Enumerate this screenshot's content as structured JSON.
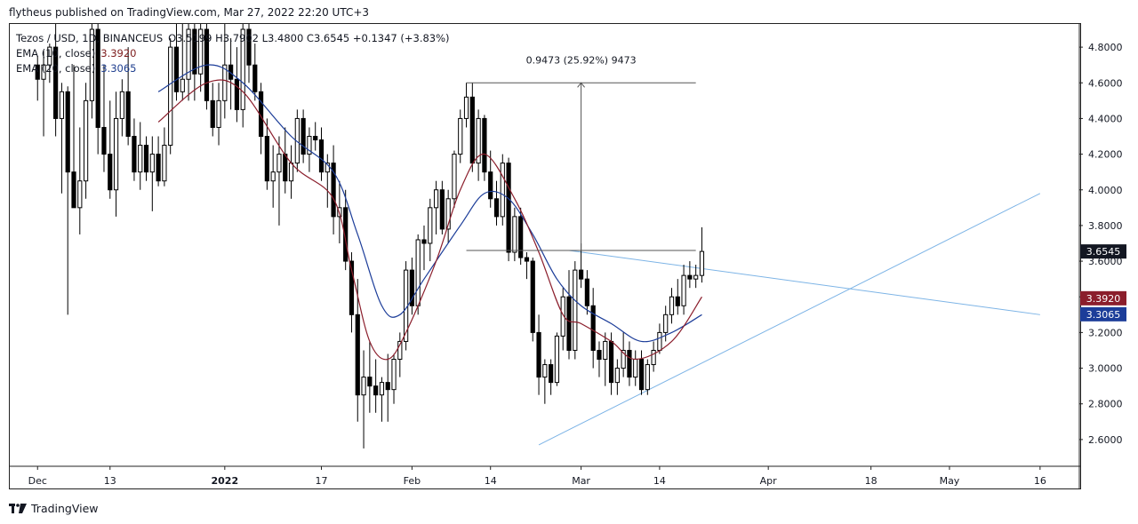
{
  "caption": "flytheus published on TradingView.com, Mar 27, 2022 22:20 UTC+3",
  "brand": "TradingView",
  "legend": {
    "symbol": "Tezos / USD, 1D, BINANCEUS",
    "ohlc": "O3.5199 H3.7902 L3.4800 C3.6545 +0.1347 (+3.83%)",
    "ema10_label": "EMA (10, close)",
    "ema10_value": "3.3920",
    "ema20_label": "EMA (20, close)",
    "ema20_value": "3.3065"
  },
  "measure_label": "0.9473 (25.92%) 9473",
  "price_tags": [
    {
      "value": "3.6545",
      "price": 3.6545,
      "color": "#131722"
    },
    {
      "value": "3.3920",
      "price": 3.392,
      "color": "#8b1e2c"
    },
    {
      "value": "3.3065",
      "price": 3.3065,
      "color": "#1c3d99"
    }
  ],
  "colors": {
    "ema10": "#8b1e2c",
    "ema20": "#1c3d99",
    "trendline": "#7db4e6",
    "up_candle": "#ffffff",
    "down_candle": "#000000",
    "measure": "#555555"
  },
  "chart_data": {
    "type": "candlestick",
    "title": "Tezos / USD, 1D, BINANCEUS",
    "y_ticks": [
      "2.6000",
      "2.8000",
      "3.0000",
      "3.2000",
      "3.4000",
      "3.6000",
      "3.8000",
      "4.0000",
      "4.2000",
      "4.4000",
      "4.6000",
      "4.8000"
    ],
    "x_ticks": [
      {
        "label": "Dec",
        "day": 0,
        "bold": false
      },
      {
        "label": "13",
        "day": 12,
        "bold": false
      },
      {
        "label": "2022",
        "day": 31,
        "bold": true
      },
      {
        "label": "17",
        "day": 47,
        "bold": false
      },
      {
        "label": "Feb",
        "day": 62,
        "bold": false
      },
      {
        "label": "14",
        "day": 75,
        "bold": false
      },
      {
        "label": "Mar",
        "day": 90,
        "bold": false
      },
      {
        "label": "14",
        "day": 103,
        "bold": false
      },
      {
        "label": "Apr",
        "day": 121,
        "bold": false
      },
      {
        "label": "18",
        "day": 138,
        "bold": false
      },
      {
        "label": "May",
        "day": 151,
        "bold": false
      },
      {
        "label": "16",
        "day": 166,
        "bold": false
      }
    ],
    "ylim": [
      2.45,
      4.93
    ],
    "xlim_days": [
      -4.6,
      172.5
    ],
    "first_day": "Dec 1",
    "candles_ohlc": [
      [
        4.7,
        4.75,
        4.5,
        4.62
      ],
      [
        4.62,
        4.78,
        4.3,
        4.7
      ],
      [
        4.7,
        4.82,
        4.6,
        4.8
      ],
      [
        4.8,
        4.93,
        4.3,
        4.4
      ],
      [
        4.4,
        4.6,
        3.98,
        4.55
      ],
      [
        4.55,
        4.58,
        3.3,
        4.1
      ],
      [
        4.1,
        4.7,
        3.9,
        3.9
      ],
      [
        3.9,
        4.35,
        3.75,
        4.05
      ],
      [
        4.05,
        4.6,
        3.95,
        4.5
      ],
      [
        4.5,
        4.93,
        4.4,
        4.9
      ],
      [
        4.9,
        4.93,
        4.2,
        4.35
      ],
      [
        4.35,
        4.7,
        4.1,
        4.2
      ],
      [
        4.2,
        4.5,
        3.95,
        4.0
      ],
      [
        4.0,
        4.55,
        3.85,
        4.4
      ],
      [
        4.4,
        4.62,
        4.3,
        4.55
      ],
      [
        4.55,
        4.8,
        4.25,
        4.3
      ],
      [
        4.3,
        4.4,
        4.05,
        4.1
      ],
      [
        4.1,
        4.38,
        4.0,
        4.25
      ],
      [
        4.25,
        4.3,
        4.05,
        4.1
      ],
      [
        4.1,
        4.3,
        3.88,
        4.2
      ],
      [
        4.2,
        4.3,
        4.02,
        4.05
      ],
      [
        4.05,
        4.35,
        4.02,
        4.25
      ],
      [
        4.25,
        4.85,
        4.2,
        4.8
      ],
      [
        4.8,
        4.93,
        4.5,
        4.55
      ],
      [
        4.55,
        4.93,
        4.5,
        4.62
      ],
      [
        4.62,
        4.93,
        4.5,
        4.9
      ],
      [
        4.9,
        4.93,
        4.5,
        4.65
      ],
      [
        4.65,
        4.93,
        4.55,
        4.9
      ],
      [
        4.9,
        4.93,
        4.45,
        4.5
      ],
      [
        4.5,
        4.6,
        4.3,
        4.35
      ],
      [
        4.35,
        4.6,
        4.25,
        4.5
      ],
      [
        4.5,
        4.93,
        4.4,
        4.7
      ],
      [
        4.7,
        4.85,
        4.45,
        4.62
      ],
      [
        4.62,
        4.8,
        4.38,
        4.45
      ],
      [
        4.45,
        4.93,
        4.35,
        4.9
      ],
      [
        4.9,
        4.93,
        4.6,
        4.7
      ],
      [
        4.7,
        4.82,
        4.5,
        4.55
      ],
      [
        4.55,
        4.6,
        4.2,
        4.3
      ],
      [
        4.3,
        4.4,
        4.0,
        4.05
      ],
      [
        4.05,
        4.25,
        3.9,
        4.1
      ],
      [
        4.1,
        4.3,
        3.8,
        4.2
      ],
      [
        4.2,
        4.35,
        3.98,
        4.05
      ],
      [
        4.05,
        4.25,
        3.95,
        4.15
      ],
      [
        4.15,
        4.45,
        4.1,
        4.4
      ],
      [
        4.4,
        4.45,
        4.15,
        4.2
      ],
      [
        4.2,
        4.35,
        4.1,
        4.3
      ],
      [
        4.3,
        4.38,
        4.22,
        4.28
      ],
      [
        4.28,
        4.35,
        4.05,
        4.1
      ],
      [
        4.1,
        4.2,
        3.9,
        4.15
      ],
      [
        4.15,
        4.25,
        3.75,
        3.85
      ],
      [
        3.85,
        4.05,
        3.7,
        3.9
      ],
      [
        3.9,
        4.0,
        3.55,
        3.6
      ],
      [
        3.6,
        3.65,
        3.2,
        3.3
      ],
      [
        3.3,
        3.5,
        2.7,
        2.85
      ],
      [
        2.85,
        3.1,
        2.55,
        2.95
      ],
      [
        2.95,
        3.15,
        2.75,
        2.9
      ],
      [
        2.9,
        3.05,
        2.75,
        2.85
      ],
      [
        2.85,
        2.95,
        2.7,
        2.92
      ],
      [
        2.92,
        3.08,
        2.7,
        2.88
      ],
      [
        2.88,
        3.08,
        2.8,
        3.05
      ],
      [
        3.05,
        3.2,
        2.95,
        3.15
      ],
      [
        3.15,
        3.6,
        3.1,
        3.55
      ],
      [
        3.55,
        3.62,
        3.3,
        3.35
      ],
      [
        3.35,
        3.75,
        3.3,
        3.72
      ],
      [
        3.72,
        3.8,
        3.55,
        3.7
      ],
      [
        3.7,
        3.95,
        3.6,
        3.9
      ],
      [
        3.9,
        4.05,
        3.75,
        4.0
      ],
      [
        4.0,
        4.05,
        3.75,
        3.78
      ],
      [
        3.78,
        4.0,
        3.7,
        3.95
      ],
      [
        3.95,
        4.22,
        3.9,
        4.2
      ],
      [
        4.2,
        4.45,
        4.15,
        4.4
      ],
      [
        4.4,
        4.6,
        4.35,
        4.52
      ],
      [
        4.52,
        4.6,
        4.1,
        4.15
      ],
      [
        4.15,
        4.45,
        4.05,
        4.4
      ],
      [
        4.4,
        4.42,
        4.05,
        4.1
      ],
      [
        4.1,
        4.22,
        3.9,
        3.95
      ],
      [
        3.95,
        4.05,
        3.8,
        3.85
      ],
      [
        3.85,
        4.2,
        3.8,
        4.15
      ],
      [
        4.15,
        4.18,
        3.6,
        3.65
      ],
      [
        3.65,
        3.9,
        3.6,
        3.85
      ],
      [
        3.85,
        3.9,
        3.58,
        3.62
      ],
      [
        3.62,
        3.65,
        3.5,
        3.6
      ],
      [
        3.6,
        3.62,
        3.15,
        3.2
      ],
      [
        3.2,
        3.3,
        2.85,
        2.95
      ],
      [
        2.95,
        3.05,
        2.8,
        3.02
      ],
      [
        3.02,
        3.05,
        2.85,
        2.92
      ],
      [
        2.92,
        3.2,
        2.9,
        3.18
      ],
      [
        3.18,
        3.45,
        3.1,
        3.4
      ],
      [
        3.4,
        3.55,
        3.05,
        3.1
      ],
      [
        3.1,
        3.6,
        3.05,
        3.55
      ],
      [
        3.55,
        3.7,
        3.45,
        3.5
      ],
      [
        3.5,
        3.55,
        3.3,
        3.35
      ],
      [
        3.35,
        3.45,
        3.0,
        3.1
      ],
      [
        3.1,
        3.15,
        2.95,
        3.05
      ],
      [
        3.05,
        3.2,
        2.9,
        3.15
      ],
      [
        3.15,
        3.2,
        2.85,
        2.92
      ],
      [
        2.92,
        3.05,
        2.85,
        3.0
      ],
      [
        3.0,
        3.2,
        2.95,
        3.1
      ],
      [
        3.1,
        3.15,
        2.9,
        2.95
      ],
      [
        2.95,
        3.1,
        2.9,
        3.05
      ],
      [
        3.05,
        3.1,
        2.85,
        2.88
      ],
      [
        2.88,
        3.05,
        2.85,
        3.02
      ],
      [
        3.02,
        3.15,
        2.98,
        3.1
      ],
      [
        3.1,
        3.25,
        3.08,
        3.2
      ],
      [
        3.2,
        3.35,
        3.15,
        3.3
      ],
      [
        3.3,
        3.45,
        3.25,
        3.4
      ],
      [
        3.4,
        3.5,
        3.3,
        3.35
      ],
      [
        3.35,
        3.58,
        3.3,
        3.52
      ],
      [
        3.52,
        3.6,
        3.45,
        3.5
      ],
      [
        3.5,
        3.58,
        3.45,
        3.52
      ],
      [
        3.5199,
        3.7902,
        3.48,
        3.6545
      ]
    ],
    "ema10": [
      [
        20,
        4.38
      ],
      [
        28,
        4.6
      ],
      [
        34,
        4.55
      ],
      [
        42,
        4.15
      ],
      [
        49,
        3.95
      ],
      [
        52,
        3.55
      ],
      [
        55,
        3.15
      ],
      [
        58,
        3.05
      ],
      [
        61,
        3.2
      ],
      [
        66,
        3.6
      ],
      [
        70,
        4.0
      ],
      [
        74,
        4.2
      ],
      [
        79,
        3.95
      ],
      [
        83,
        3.65
      ],
      [
        87,
        3.3
      ],
      [
        90,
        3.25
      ],
      [
        95,
        3.15
      ],
      [
        99,
        3.05
      ],
      [
        105,
        3.15
      ],
      [
        110,
        3.4
      ]
    ],
    "ema20": [
      [
        20,
        4.55
      ],
      [
        28,
        4.7
      ],
      [
        34,
        4.6
      ],
      [
        42,
        4.3
      ],
      [
        49,
        4.1
      ],
      [
        53,
        3.75
      ],
      [
        57,
        3.35
      ],
      [
        60,
        3.3
      ],
      [
        64,
        3.5
      ],
      [
        70,
        3.8
      ],
      [
        74,
        3.98
      ],
      [
        78,
        3.95
      ],
      [
        82,
        3.75
      ],
      [
        86,
        3.5
      ],
      [
        90,
        3.35
      ],
      [
        95,
        3.25
      ],
      [
        100,
        3.15
      ],
      [
        105,
        3.2
      ],
      [
        110,
        3.3
      ]
    ],
    "trendline_lower": [
      [
        83,
        2.57
      ],
      [
        166,
        3.98
      ]
    ],
    "trendline_upper": [
      [
        88,
        3.66
      ],
      [
        166,
        3.3
      ]
    ],
    "measure": {
      "base": 3.66,
      "top": 4.6,
      "x_start": 71,
      "x_end": 109,
      "x_arrow": 90
    }
  }
}
